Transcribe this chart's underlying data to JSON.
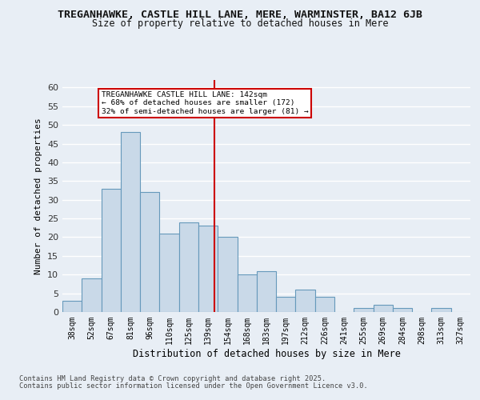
{
  "title": "TREGANHAWKE, CASTLE HILL LANE, MERE, WARMINSTER, BA12 6JB",
  "subtitle": "Size of property relative to detached houses in Mere",
  "xlabel": "Distribution of detached houses by size in Mere",
  "ylabel": "Number of detached properties",
  "bar_labels": [
    "38sqm",
    "52sqm",
    "67sqm",
    "81sqm",
    "96sqm",
    "110sqm",
    "125sqm",
    "139sqm",
    "154sqm",
    "168sqm",
    "183sqm",
    "197sqm",
    "212sqm",
    "226sqm",
    "241sqm",
    "255sqm",
    "269sqm",
    "284sqm",
    "298sqm",
    "313sqm",
    "327sqm"
  ],
  "bar_values": [
    3,
    9,
    33,
    48,
    32,
    21,
    24,
    23,
    20,
    10,
    11,
    4,
    6,
    4,
    0,
    1,
    2,
    1,
    0,
    1,
    0
  ],
  "bar_color": "#c9d9e8",
  "bar_edge_color": "#6699bb",
  "background_color": "#e8eef5",
  "grid_color": "#ffffff",
  "property_label": "TREGANHAWKE CASTLE HILL LANE: 142sqm",
  "pct_smaller": 68,
  "n_smaller": 172,
  "pct_larger_semi": 32,
  "n_larger_semi": 81,
  "vline_x_index": 7.33,
  "ylim": [
    0,
    62
  ],
  "yticks": [
    0,
    5,
    10,
    15,
    20,
    25,
    30,
    35,
    40,
    45,
    50,
    55,
    60
  ],
  "annotation_box_color": "#ffffff",
  "annotation_box_edge": "#cc0000",
  "vline_color": "#cc0000",
  "footer1": "Contains HM Land Registry data © Crown copyright and database right 2025.",
  "footer2": "Contains public sector information licensed under the Open Government Licence v3.0."
}
